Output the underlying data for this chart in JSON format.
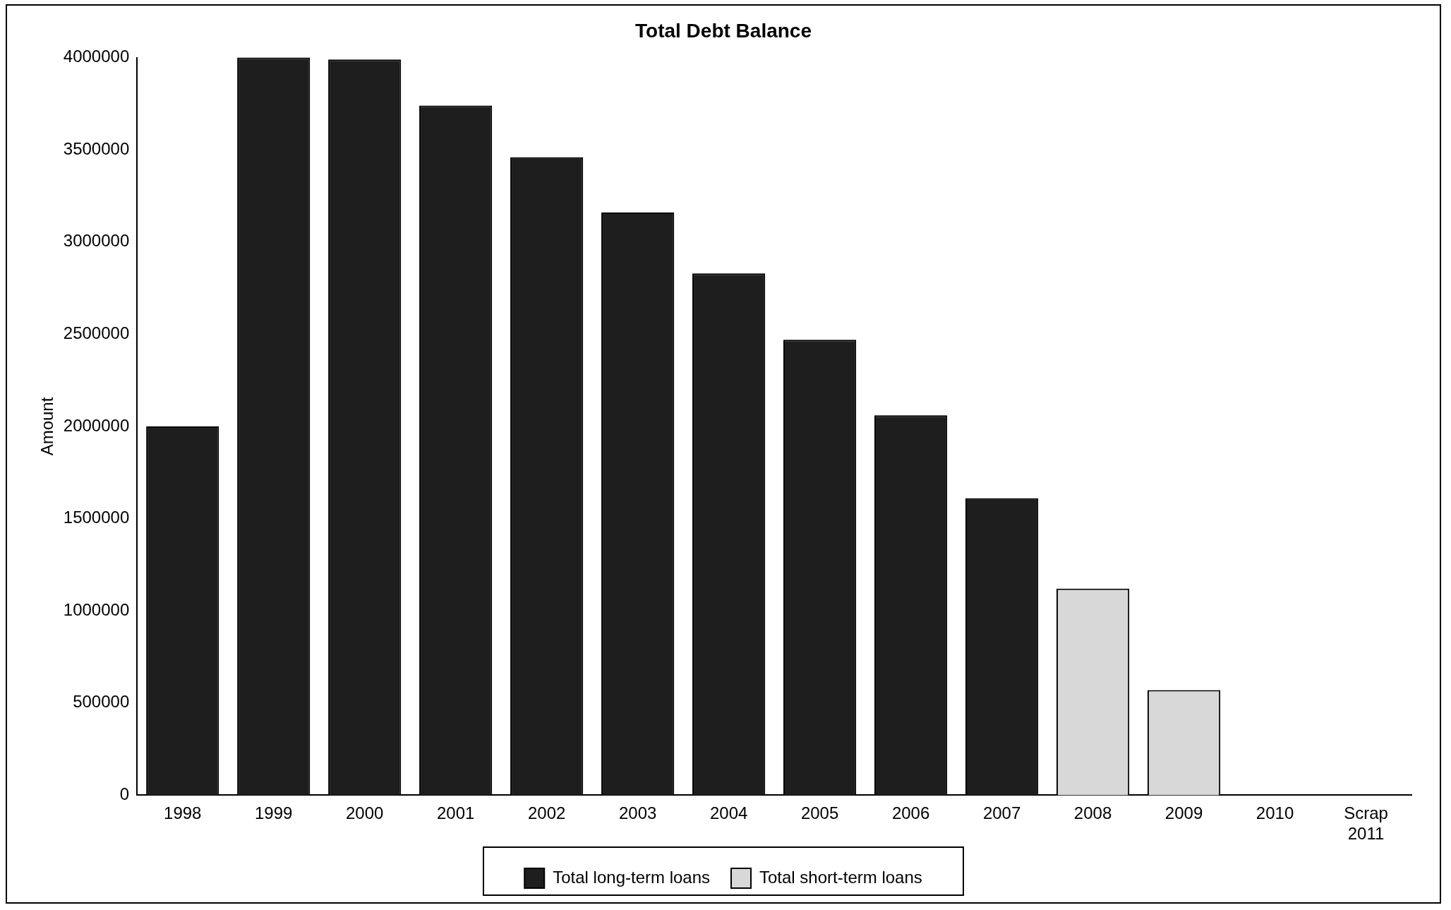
{
  "chart_data": {
    "type": "bar",
    "title": "Total Debt Balance",
    "ylabel": "Amount",
    "stacked": true,
    "categories": [
      "1998",
      "1999",
      "2000",
      "2001",
      "2002",
      "2003",
      "2004",
      "2005",
      "2006",
      "2007",
      "2008",
      "2009",
      "2010",
      "Scrap\n2011"
    ],
    "series": [
      {
        "name": "Total long-term loans",
        "color": "#1e1e1e",
        "values": [
          2000000,
          4000000,
          3990000,
          3740000,
          3460000,
          3160000,
          2830000,
          2470000,
          2060000,
          1610000,
          null,
          null,
          null,
          null
        ]
      },
      {
        "name": "Total short-term loans",
        "color": "#d8d8d8",
        "values": [
          null,
          null,
          null,
          null,
          null,
          null,
          null,
          null,
          null,
          null,
          1120000,
          570000,
          null,
          null
        ]
      }
    ],
    "ylim": [
      0,
      4000000
    ],
    "yticks": [
      0,
      500000,
      1000000,
      1500000,
      2000000,
      2500000,
      3000000,
      3500000,
      4000000
    ],
    "grid": false,
    "legend": "bottom"
  }
}
